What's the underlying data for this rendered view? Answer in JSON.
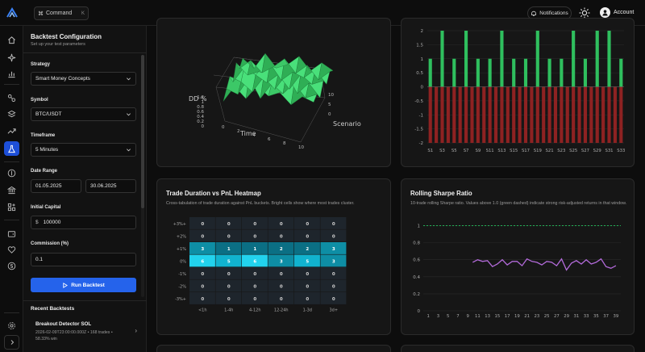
{
  "header": {
    "command_label": "Command",
    "command_shortcut": "K",
    "notifications_label": "Notifications",
    "account_label": "Account"
  },
  "nav": {
    "icons": [
      "home-icon",
      "sparkles-icon",
      "bar-chart-icon",
      "link-icon",
      "layers-icon",
      "trending-up-icon",
      "flask-icon",
      "dollar-circle-icon",
      "bank-icon",
      "grid-plus-icon",
      "wallet-icon",
      "heart-icon",
      "coin-icon",
      "settings-icon",
      "chevron-right-icon"
    ],
    "active": "flask-icon"
  },
  "config": {
    "title": "Backtest Configuration",
    "subtitle": "Set up your test parameters",
    "strategy_label": "Strategy",
    "strategy_value": "Smart Money Concepts",
    "symbol_label": "Symbol",
    "symbol_value": "BTC/USDT",
    "timeframe_label": "Timeframe",
    "timeframe_value": "5 Minutes",
    "date_label": "Date Range",
    "date_start": "01.05.2025",
    "date_end": "30.06.2025",
    "capital_label": "Initial Capital",
    "capital_prefix": "$",
    "capital_value": "100000",
    "commission_label": "Commission (%)",
    "commission_value": "0.1",
    "run_label": "Run Backtest"
  },
  "recent": {
    "title": "Recent Backtests",
    "items": [
      {
        "name": "Breakout Detector SOL",
        "meta": "2026-02-09T23:00:00.000Z • 168 trades • 58.33% win"
      }
    ]
  },
  "cards": {
    "surface3d": {
      "z_label": "DD %",
      "x_label": "Time",
      "y_label": "Scenario",
      "z_ticks": [
        "1.2",
        "1",
        "0.8",
        "0.6",
        "0.4",
        "0.2",
        "0"
      ],
      "x_ticks": [
        "0",
        "2",
        "4",
        "6",
        "8",
        "10"
      ],
      "y_ticks": [
        "0",
        "5",
        "10"
      ],
      "surface_color": "#3fd16a"
    },
    "heatmap": {
      "title": "Trade Duration vs PnL Heatmap",
      "description": "Cross-tabulation of trade duration against PnL buckets. Bright cells show where most trades cluster.",
      "rows": [
        "+3%+",
        "+2%",
        "+1%",
        "0%",
        "-1%",
        "-2%",
        "-3%+"
      ],
      "cols": [
        "<1h",
        "1-4h",
        "4-12h",
        "12-24h",
        "1-3d",
        "3d+"
      ],
      "values": [
        [
          0,
          0,
          0,
          0,
          0,
          0
        ],
        [
          0,
          0,
          0,
          0,
          0,
          0
        ],
        [
          3,
          1,
          1,
          2,
          2,
          3
        ],
        [
          6,
          5,
          6,
          3,
          5,
          3
        ],
        [
          0,
          0,
          0,
          0,
          0,
          0
        ],
        [
          0,
          0,
          0,
          0,
          0,
          0
        ],
        [
          0,
          0,
          0,
          0,
          0,
          0
        ]
      ]
    },
    "sharpe": {
      "title": "Rolling Sharpe Ratio",
      "description": "10-trade rolling Sharpe ratio. Values above 1.0 (green dashed) indicate strong risk-adjusted returns in that window.",
      "threshold_color": "#22c55e",
      "line_color": "#b26ad9"
    }
  },
  "chart_data": [
    {
      "type": "bar",
      "title": "",
      "categories": [
        "S1",
        "S2",
        "S3",
        "S4",
        "S5",
        "S6",
        "S7",
        "S8",
        "S9",
        "S10",
        "S11",
        "S12",
        "S13",
        "S14",
        "S15",
        "S16",
        "S17",
        "S18",
        "S19",
        "S20",
        "S21",
        "S22",
        "S23",
        "S24",
        "S25",
        "S26",
        "S27",
        "S28",
        "S29",
        "S30",
        "S31",
        "S32",
        "S33"
      ],
      "tick_labels": [
        "S1",
        "S3",
        "S5",
        "S7",
        "S9",
        "S11",
        "S13",
        "S15",
        "S17",
        "S19",
        "S21",
        "S23",
        "S25",
        "S27",
        "S29",
        "S31",
        "S33"
      ],
      "series": [
        {
          "values": [
            1,
            0,
            2,
            0,
            1,
            0,
            2,
            0,
            1,
            0,
            1,
            0,
            2,
            0,
            1,
            0,
            1,
            0,
            2,
            0,
            1,
            0,
            1,
            0,
            2,
            0,
            1,
            0,
            2,
            0,
            2,
            0,
            1
          ],
          "color": "#2fbf5e"
        },
        {
          "values": [
            -2,
            -2,
            -2,
            -2,
            -2,
            -2,
            -2,
            -2,
            -2,
            -2,
            -2,
            -2,
            -2,
            -2,
            -2,
            -2,
            -2,
            -2,
            -2,
            -2,
            -2,
            -2,
            -2,
            -2,
            -2,
            -2,
            -2,
            -2,
            -2,
            -2,
            -2,
            -2,
            -2
          ],
          "color": "#8e2222"
        }
      ],
      "ylim": [
        -2,
        2
      ],
      "yticks": [
        2,
        1.5,
        1,
        0.5,
        0,
        -0.5,
        -1,
        -1.5,
        -2
      ]
    },
    {
      "type": "line",
      "title": "Rolling Sharpe Ratio",
      "x": [
        10,
        11,
        12,
        13,
        14,
        15,
        16,
        17,
        18,
        19,
        20,
        21,
        22,
        23,
        24,
        25,
        26,
        27,
        28,
        29,
        30,
        31,
        32,
        33,
        34,
        35,
        36,
        37,
        38,
        39
      ],
      "values": [
        0.57,
        0.6,
        0.58,
        0.59,
        0.52,
        0.55,
        0.6,
        0.54,
        0.58,
        0.58,
        0.53,
        0.61,
        0.58,
        0.57,
        0.54,
        0.58,
        0.57,
        0.53,
        0.61,
        0.48,
        0.56,
        0.59,
        0.55,
        0.6,
        0.55,
        0.57,
        0.61,
        0.52,
        0.5,
        0.53
      ],
      "threshold": 1.0,
      "ylim": [
        0,
        1.1
      ],
      "yticks": [
        1,
        0.8,
        0.6,
        0.4,
        0.2,
        0
      ],
      "xticks": [
        1,
        3,
        5,
        7,
        9,
        11,
        13,
        15,
        17,
        19,
        21,
        23,
        25,
        27,
        29,
        31,
        33,
        35,
        37,
        39
      ]
    }
  ]
}
